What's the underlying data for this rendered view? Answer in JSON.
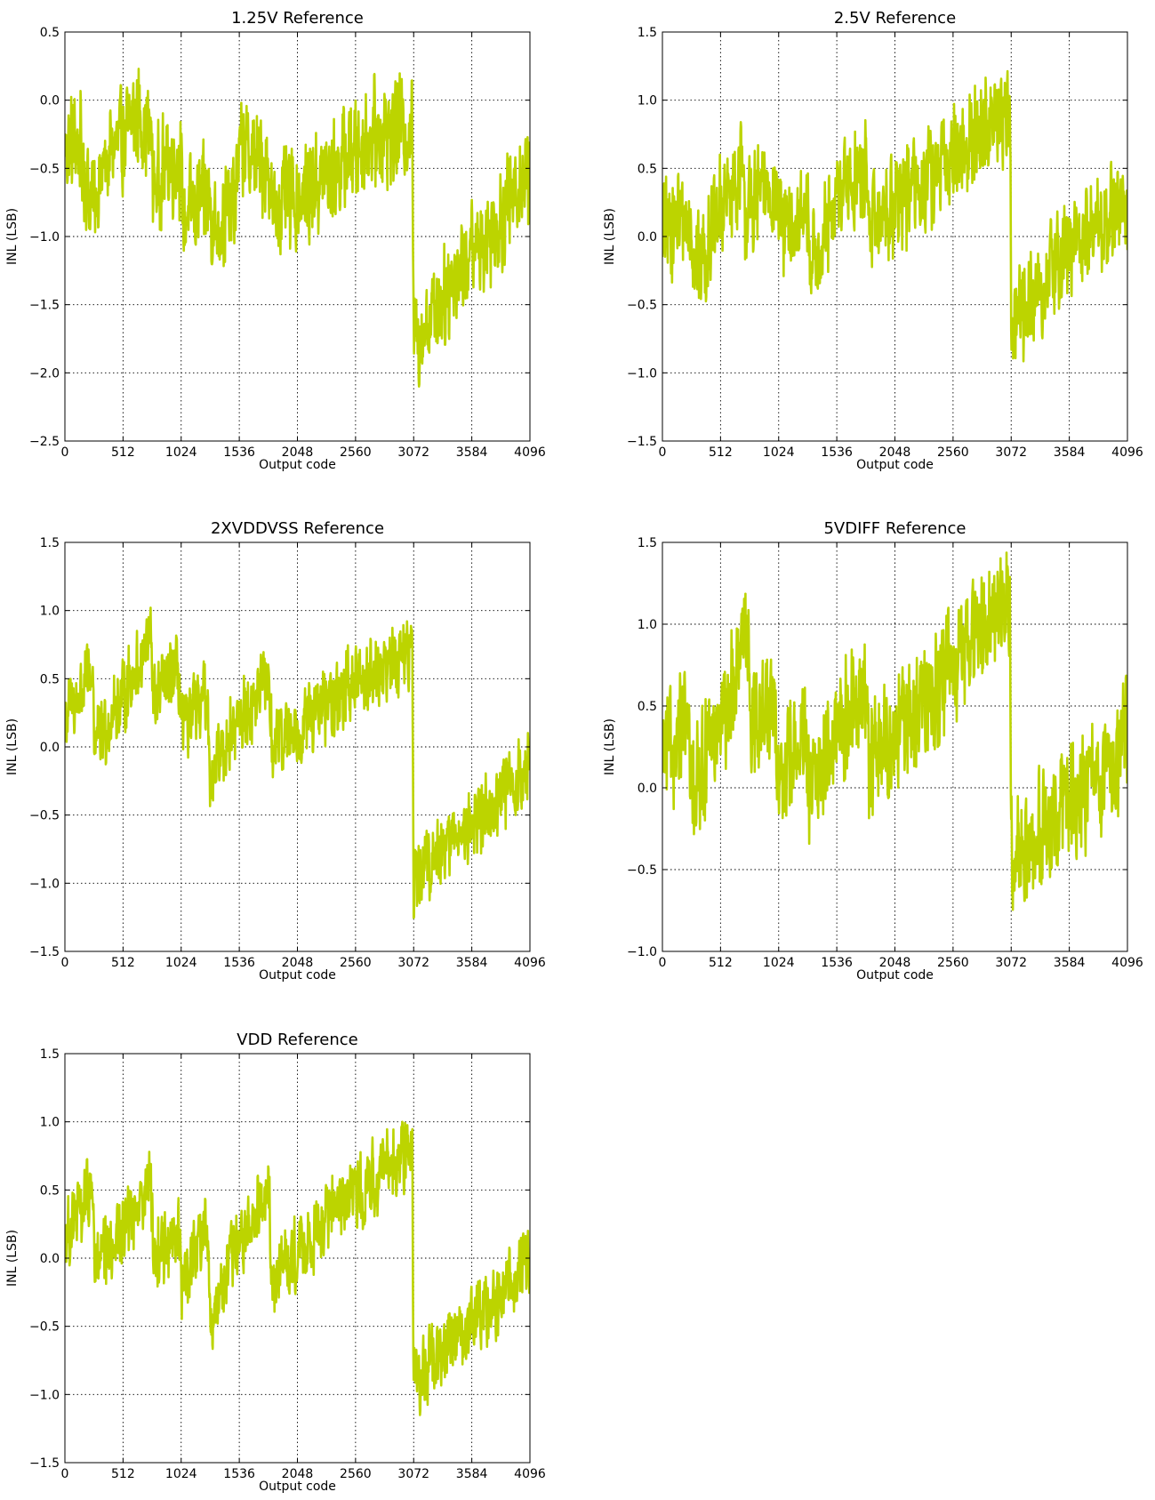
{
  "chart_data": [
    {
      "type": "line",
      "title": "1.25V Reference",
      "xlabel": "Output code",
      "ylabel": "INL (LSB)",
      "xlim": [
        0,
        4096
      ],
      "ylim": [
        -2.5,
        0.5
      ],
      "xticks": [
        0,
        512,
        1024,
        1536,
        2048,
        2560,
        3072,
        3584,
        4096
      ],
      "yticks": [
        -2.5,
        -2.0,
        -1.5,
        -1.0,
        -0.5,
        0.0,
        0.5
      ],
      "xtick_labels": [
        "0",
        "512",
        "1024",
        "1536",
        "2048",
        "2560",
        "3072",
        "3584",
        "4096"
      ],
      "ytick_labels": [
        "−2.5",
        "−2.0",
        "−1.5",
        "−1.0",
        "−0.5",
        "0.0",
        "0.5"
      ],
      "grid": true,
      "line_color": "#bcd400",
      "noise": 0.45,
      "trend": [
        [
          0,
          -0.35
        ],
        [
          120,
          -0.3
        ],
        [
          230,
          -0.75
        ],
        [
          300,
          -0.6
        ],
        [
          420,
          -0.35
        ],
        [
          520,
          -0.3
        ],
        [
          620,
          -0.1
        ],
        [
          760,
          -0.25
        ],
        [
          780,
          -0.65
        ],
        [
          900,
          -0.45
        ],
        [
          1020,
          -0.45
        ],
        [
          1035,
          -0.85
        ],
        [
          1200,
          -0.75
        ],
        [
          1280,
          -0.7
        ],
        [
          1300,
          -0.95
        ],
        [
          1500,
          -0.75
        ],
        [
          1530,
          -0.35
        ],
        [
          1800,
          -0.5
        ],
        [
          1830,
          -0.8
        ],
        [
          2100,
          -0.7
        ],
        [
          2400,
          -0.5
        ],
        [
          2700,
          -0.25
        ],
        [
          3060,
          -0.2
        ],
        [
          3072,
          -1.75
        ],
        [
          3200,
          -1.6
        ],
        [
          3500,
          -1.2
        ],
        [
          3800,
          -0.9
        ],
        [
          4096,
          -0.5
        ]
      ]
    },
    {
      "type": "line",
      "title": "2.5V Reference",
      "xlabel": "Output code",
      "ylabel": "INL (LSB)",
      "xlim": [
        0,
        4096
      ],
      "ylim": [
        -1.5,
        1.5
      ],
      "xticks": [
        0,
        512,
        1024,
        1536,
        2048,
        2560,
        3072,
        3584,
        4096
      ],
      "yticks": [
        -1.5,
        -1.0,
        -0.5,
        0.0,
        0.5,
        1.0,
        1.5
      ],
      "xtick_labels": [
        "0",
        "512",
        "1024",
        "1536",
        "2048",
        "2560",
        "3072",
        "3584",
        "4096"
      ],
      "ytick_labels": [
        "−1.5",
        "−1.0",
        "−0.5",
        "0.0",
        "0.5",
        "1.0",
        "1.5"
      ],
      "grid": true,
      "line_color": "#bcd400",
      "noise": 0.45,
      "trend": [
        [
          0,
          0.05
        ],
        [
          200,
          0.15
        ],
        [
          320,
          -0.2
        ],
        [
          400,
          -0.05
        ],
        [
          520,
          0.2
        ],
        [
          700,
          0.5
        ],
        [
          720,
          0.15
        ],
        [
          900,
          0.35
        ],
        [
          1010,
          0.35
        ],
        [
          1040,
          0.0
        ],
        [
          1280,
          0.15
        ],
        [
          1300,
          -0.2
        ],
        [
          1500,
          0.1
        ],
        [
          1560,
          0.35
        ],
        [
          1800,
          0.45
        ],
        [
          1820,
          0.1
        ],
        [
          2100,
          0.3
        ],
        [
          2400,
          0.45
        ],
        [
          2650,
          0.65
        ],
        [
          3060,
          0.95
        ],
        [
          3072,
          -0.6
        ],
        [
          3300,
          -0.45
        ],
        [
          3500,
          -0.15
        ],
        [
          3800,
          0.05
        ],
        [
          4096,
          0.25
        ]
      ]
    },
    {
      "type": "line",
      "title": "2XVDDVSS Reference",
      "xlabel": "Output code",
      "ylabel": "INL (LSB)",
      "xlim": [
        0,
        4096
      ],
      "ylim": [
        -1.5,
        1.5
      ],
      "xticks": [
        0,
        512,
        1024,
        1536,
        2048,
        2560,
        3072,
        3584,
        4096
      ],
      "yticks": [
        -1.5,
        -1.0,
        -0.5,
        0.0,
        0.5,
        1.0,
        1.5
      ],
      "xtick_labels": [
        "0",
        "512",
        "1024",
        "1536",
        "2048",
        "2560",
        "3072",
        "3584",
        "4096"
      ],
      "ytick_labels": [
        "−1.5",
        "−1.0",
        "−0.5",
        "0.0",
        "0.5",
        "1.0",
        "1.5"
      ],
      "grid": true,
      "line_color": "#bcd400",
      "noise": 0.32,
      "trend": [
        [
          0,
          0.2
        ],
        [
          250,
          0.55
        ],
        [
          260,
          0.0
        ],
        [
          500,
          0.35
        ],
        [
          760,
          0.8
        ],
        [
          780,
          0.35
        ],
        [
          1000,
          0.55
        ],
        [
          1030,
          0.1
        ],
        [
          1250,
          0.4
        ],
        [
          1280,
          -0.2
        ],
        [
          1500,
          0.15
        ],
        [
          1800,
          0.5
        ],
        [
          1820,
          0.0
        ],
        [
          2050,
          0.15
        ],
        [
          2300,
          0.3
        ],
        [
          2600,
          0.5
        ],
        [
          3060,
          0.7
        ],
        [
          3072,
          -1.0
        ],
        [
          3300,
          -0.75
        ],
        [
          3600,
          -0.55
        ],
        [
          3800,
          -0.4
        ],
        [
          4096,
          -0.15
        ]
      ]
    },
    {
      "type": "line",
      "title": "5VDIFF Reference",
      "xlabel": "Output code",
      "ylabel": "INL (LSB)",
      "xlim": [
        0,
        4096
      ],
      "ylim": [
        -1.0,
        1.5
      ],
      "xticks": [
        0,
        512,
        1024,
        1536,
        2048,
        2560,
        3072,
        3584,
        4096
      ],
      "yticks": [
        -1.0,
        -0.5,
        0.0,
        0.5,
        1.0,
        1.5
      ],
      "xtick_labels": [
        "0",
        "512",
        "1024",
        "1536",
        "2048",
        "2560",
        "3072",
        "3584",
        "4096"
      ],
      "ytick_labels": [
        "−1.0",
        "−0.5",
        "0.0",
        "0.5",
        "1.0",
        "1.5"
      ],
      "grid": true,
      "line_color": "#bcd400",
      "noise": 0.42,
      "trend": [
        [
          0,
          0.2
        ],
        [
          230,
          0.35
        ],
        [
          260,
          0.0
        ],
        [
          500,
          0.35
        ],
        [
          760,
          0.95
        ],
        [
          780,
          0.45
        ],
        [
          1000,
          0.45
        ],
        [
          1030,
          0.05
        ],
        [
          1250,
          0.3
        ],
        [
          1280,
          -0.05
        ],
        [
          1500,
          0.3
        ],
        [
          1800,
          0.6
        ],
        [
          1820,
          0.2
        ],
        [
          2100,
          0.35
        ],
        [
          2400,
          0.6
        ],
        [
          2700,
          0.9
        ],
        [
          3060,
          1.15
        ],
        [
          3072,
          -0.45
        ],
        [
          3300,
          -0.3
        ],
        [
          3500,
          -0.1
        ],
        [
          3800,
          0.0
        ],
        [
          4096,
          0.3
        ]
      ]
    },
    {
      "type": "line",
      "title": "VDD Reference",
      "xlabel": "Output code",
      "ylabel": "INL (LSB)",
      "xlim": [
        0,
        4096
      ],
      "ylim": [
        -1.5,
        1.5
      ],
      "xticks": [
        0,
        512,
        1024,
        1536,
        2048,
        2560,
        3072,
        3584,
        4096
      ],
      "yticks": [
        -1.5,
        -1.0,
        -0.5,
        0.0,
        0.5,
        1.0,
        1.5
      ],
      "xtick_labels": [
        "0",
        "512",
        "1024",
        "1536",
        "2048",
        "2560",
        "3072",
        "3584",
        "4096"
      ],
      "ytick_labels": [
        "−1.5",
        "−1.0",
        "−0.5",
        "0.0",
        "0.5",
        "1.0",
        "1.5"
      ],
      "grid": true,
      "line_color": "#bcd400",
      "noise": 0.32,
      "trend": [
        [
          0,
          0.15
        ],
        [
          250,
          0.5
        ],
        [
          260,
          -0.1
        ],
        [
          500,
          0.2
        ],
        [
          760,
          0.6
        ],
        [
          780,
          0.0
        ],
        [
          1000,
          0.2
        ],
        [
          1030,
          -0.2
        ],
        [
          1250,
          0.3
        ],
        [
          1280,
          -0.45
        ],
        [
          1500,
          0.05
        ],
        [
          1800,
          0.45
        ],
        [
          1820,
          -0.15
        ],
        [
          2050,
          0.05
        ],
        [
          2300,
          0.3
        ],
        [
          2600,
          0.5
        ],
        [
          3060,
          0.8
        ],
        [
          3072,
          -0.9
        ],
        [
          3300,
          -0.7
        ],
        [
          3600,
          -0.45
        ],
        [
          3800,
          -0.3
        ],
        [
          4096,
          0.0
        ]
      ]
    }
  ]
}
